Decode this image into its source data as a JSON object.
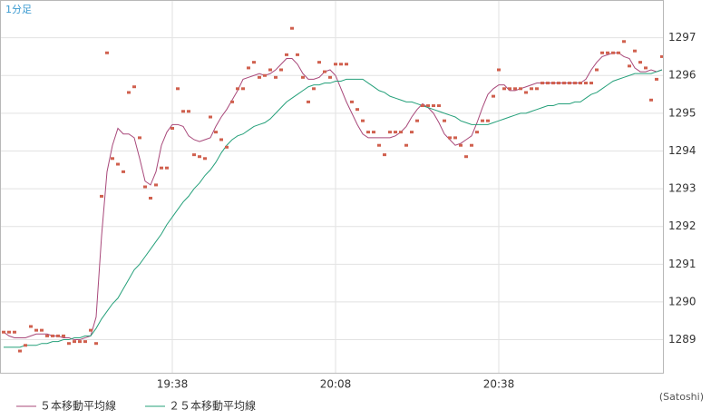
{
  "chart_data": {
    "type": "line",
    "title": "1分足",
    "footnote": "(Satoshi)",
    "categories": [
      null,
      null,
      null,
      null,
      null,
      null,
      null,
      null,
      null,
      null,
      null,
      null,
      null,
      null,
      null,
      null,
      null,
      null,
      null,
      null,
      null,
      null,
      null,
      null,
      null,
      null,
      null,
      null,
      null,
      null,
      null,
      "19:38",
      null,
      null,
      null,
      null,
      null,
      null,
      null,
      null,
      null,
      null,
      null,
      null,
      null,
      null,
      null,
      null,
      null,
      null,
      null,
      null,
      null,
      null,
      null,
      null,
      null,
      null,
      null,
      null,
      null,
      "20:08",
      null,
      null,
      null,
      null,
      null,
      null,
      null,
      null,
      null,
      null,
      null,
      null,
      null,
      null,
      null,
      null,
      null,
      null,
      null,
      null,
      null,
      null,
      null,
      null,
      null,
      null,
      null,
      null,
      null,
      "20:38",
      null,
      null,
      null,
      null,
      null,
      null,
      null,
      null,
      null,
      null,
      null,
      null,
      null,
      null,
      null,
      null,
      null,
      null,
      null,
      null,
      null,
      null,
      null,
      null,
      null,
      null,
      null,
      null,
      null,
      null
    ],
    "ylim": [
      1288.1,
      1298.0
    ],
    "yticks": [
      1289,
      1290,
      1291,
      1292,
      1293,
      1294,
      1295,
      1296,
      1297
    ],
    "grid": true,
    "series": [
      {
        "type": "scatter",
        "color": "#d0604e",
        "values": [
          1289.2,
          1289.2,
          1289.2,
          1288.7,
          1288.85,
          1289.35,
          1289.25,
          1289.25,
          1289.1,
          1289.1,
          1289.1,
          1289.1,
          1288.9,
          1288.95,
          1288.95,
          1288.95,
          1289.25,
          1288.9,
          1292.8,
          1296.6,
          1293.8,
          1293.65,
          1293.45,
          1295.55,
          1295.7,
          1294.35,
          1293.05,
          1292.75,
          1293.1,
          1293.55,
          1293.55,
          1294.6,
          1295.65,
          1295.05,
          1295.05,
          1293.9,
          1293.85,
          1293.8,
          1294.9,
          1294.5,
          1294.3,
          1294.1,
          1295.3,
          1295.65,
          1295.65,
          1296.2,
          1296.35,
          1295.95,
          1296.0,
          1296.15,
          1295.95,
          1296.15,
          1296.55,
          1297.25,
          1296.55,
          1295.95,
          1295.3,
          1295.65,
          1296.35,
          1296.1,
          1295.95,
          1296.3,
          1296.3,
          1296.3,
          1295.3,
          1295.1,
          1294.8,
          1294.5,
          1294.5,
          1294.15,
          1293.9,
          1294.5,
          1294.5,
          1294.5,
          1294.15,
          1294.5,
          1294.8,
          1295.2,
          1295.2,
          1295.2,
          1295.2,
          1294.8,
          1294.35,
          1294.35,
          1294.15,
          1293.85,
          1294.15,
          1294.5,
          1294.8,
          1294.8,
          1295.45,
          1296.15,
          1295.65,
          1295.65,
          1295.65,
          1295.65,
          1295.55,
          1295.65,
          1295.65,
          1295.8,
          1295.8,
          1295.8,
          1295.8,
          1295.8,
          1295.8,
          1295.8,
          1295.8,
          1295.8,
          1295.8,
          1296.15,
          1296.6,
          1296.6,
          1296.6,
          1296.6,
          1296.9,
          1296.25,
          1296.65,
          1296.35,
          1296.2,
          1295.35,
          1295.9,
          1296.5
        ]
      },
      {
        "type": "line",
        "name": "５本移動平均線",
        "color": "#a8487a",
        "values": [
          1289.2,
          1289.1,
          1289.05,
          1289.05,
          1289.05,
          1289.1,
          1289.15,
          1289.15,
          1289.15,
          1289.1,
          1289.1,
          1289.05,
          1289.05,
          1289.0,
          1289.0,
          1289.05,
          1289.1,
          1289.6,
          1291.75,
          1293.45,
          1294.15,
          1294.6,
          1294.45,
          1294.45,
          1294.35,
          1293.8,
          1293.2,
          1293.1,
          1293.45,
          1294.15,
          1294.5,
          1294.7,
          1294.7,
          1294.65,
          1294.4,
          1294.3,
          1294.25,
          1294.3,
          1294.35,
          1294.65,
          1294.9,
          1295.1,
          1295.35,
          1295.6,
          1295.9,
          1295.95,
          1296.0,
          1296.05,
          1296.0,
          1296.05,
          1296.15,
          1296.3,
          1296.45,
          1296.45,
          1296.3,
          1296.05,
          1295.9,
          1295.9,
          1295.95,
          1296.1,
          1296.15,
          1296.0,
          1295.65,
          1295.3,
          1295.0,
          1294.7,
          1294.45,
          1294.35,
          1294.35,
          1294.35,
          1294.35,
          1294.35,
          1294.4,
          1294.5,
          1294.65,
          1294.9,
          1295.1,
          1295.25,
          1295.15,
          1295.0,
          1294.75,
          1294.45,
          1294.3,
          1294.15,
          1294.2,
          1294.3,
          1294.4,
          1294.75,
          1295.15,
          1295.5,
          1295.65,
          1295.75,
          1295.75,
          1295.6,
          1295.6,
          1295.65,
          1295.7,
          1295.75,
          1295.8,
          1295.8,
          1295.8,
          1295.8,
          1295.8,
          1295.8,
          1295.8,
          1295.8,
          1295.8,
          1295.9,
          1296.15,
          1296.35,
          1296.5,
          1296.55,
          1296.6,
          1296.6,
          1296.5,
          1296.45,
          1296.2,
          1296.1,
          1296.1,
          1296.15,
          1296.1,
          1296.15
        ]
      },
      {
        "type": "line",
        "name": "２５本移動平均線",
        "color": "#25a07a",
        "values": [
          1288.8,
          1288.8,
          1288.8,
          1288.8,
          1288.85,
          1288.85,
          1288.85,
          1288.9,
          1288.9,
          1288.95,
          1288.95,
          1289.0,
          1289.0,
          1289.05,
          1289.05,
          1289.1,
          1289.1,
          1289.3,
          1289.55,
          1289.75,
          1289.95,
          1290.1,
          1290.35,
          1290.6,
          1290.85,
          1291.0,
          1291.2,
          1291.4,
          1291.6,
          1291.8,
          1292.05,
          1292.25,
          1292.45,
          1292.65,
          1292.8,
          1293.0,
          1293.15,
          1293.35,
          1293.5,
          1293.7,
          1293.95,
          1294.15,
          1294.3,
          1294.4,
          1294.45,
          1294.55,
          1294.65,
          1294.7,
          1294.75,
          1294.85,
          1295.0,
          1295.15,
          1295.3,
          1295.4,
          1295.5,
          1295.6,
          1295.7,
          1295.75,
          1295.75,
          1295.8,
          1295.8,
          1295.85,
          1295.85,
          1295.9,
          1295.9,
          1295.9,
          1295.9,
          1295.8,
          1295.7,
          1295.6,
          1295.55,
          1295.45,
          1295.4,
          1295.35,
          1295.3,
          1295.3,
          1295.25,
          1295.2,
          1295.15,
          1295.1,
          1295.05,
          1295.0,
          1294.95,
          1294.9,
          1294.8,
          1294.75,
          1294.7,
          1294.7,
          1294.7,
          1294.7,
          1294.75,
          1294.8,
          1294.85,
          1294.9,
          1294.95,
          1295.0,
          1295.0,
          1295.05,
          1295.1,
          1295.15,
          1295.2,
          1295.2,
          1295.25,
          1295.25,
          1295.25,
          1295.3,
          1295.3,
          1295.4,
          1295.5,
          1295.55,
          1295.65,
          1295.75,
          1295.85,
          1295.9,
          1295.95,
          1296.0,
          1296.05,
          1296.05,
          1296.05,
          1296.05,
          1296.1,
          1296.15
        ]
      }
    ]
  }
}
